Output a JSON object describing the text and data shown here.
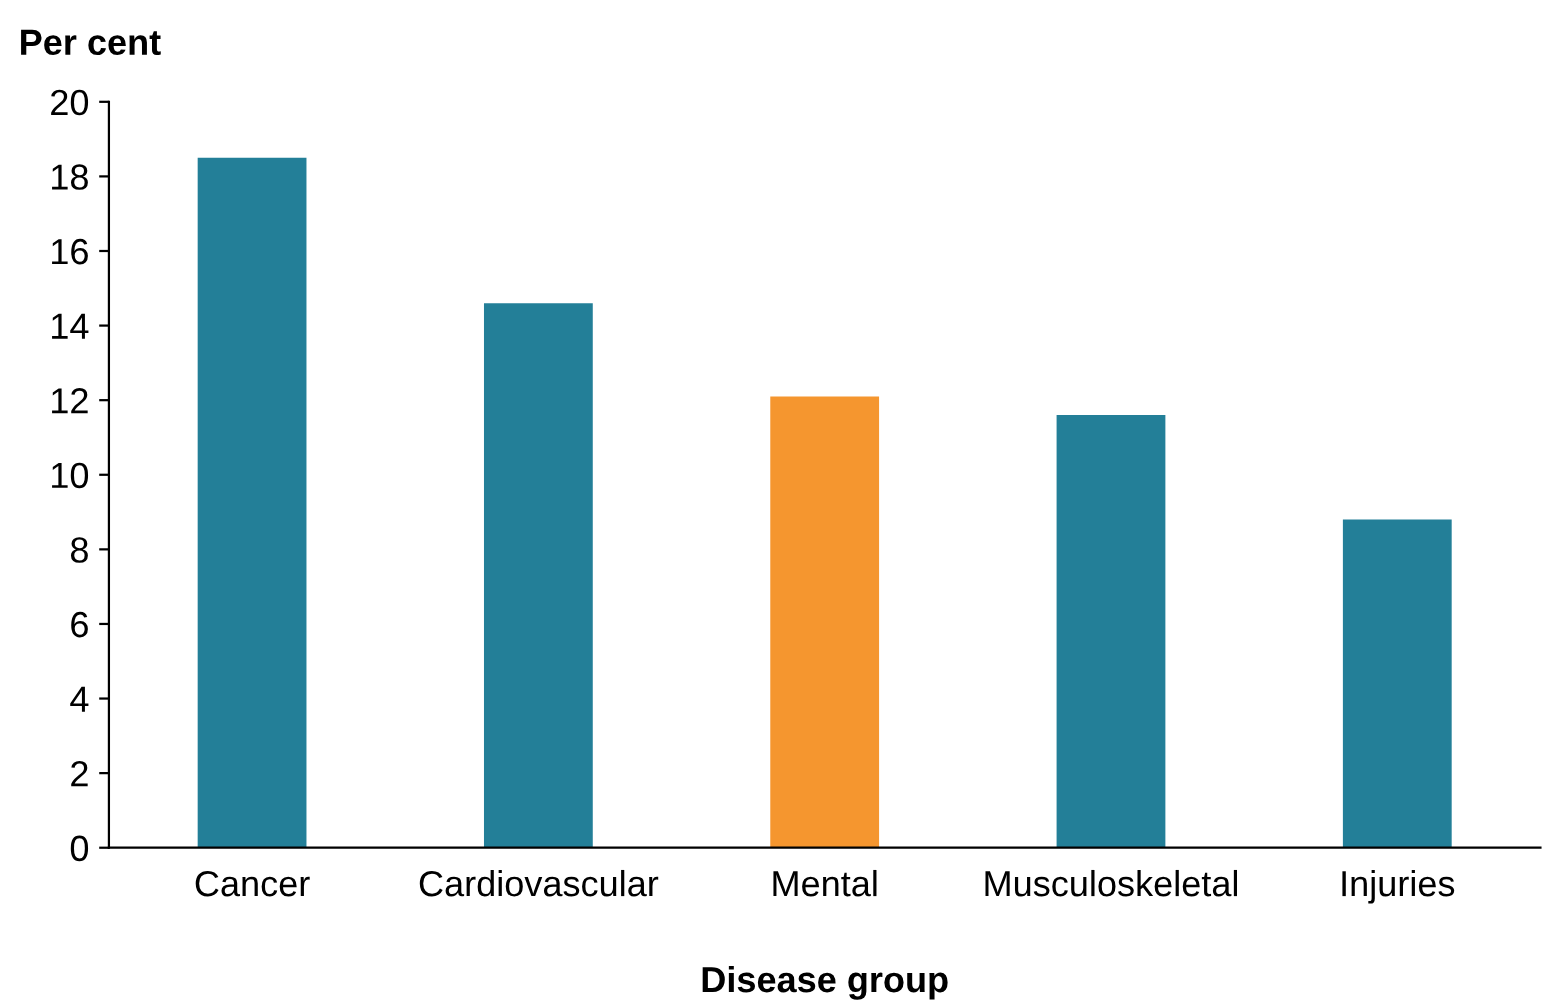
{
  "chart_data": {
    "type": "bar",
    "ylabel": "Per cent",
    "xlabel": "Disease group",
    "categories": [
      "Cancer",
      "Cardiovascular",
      "Mental",
      "Musculoskeletal",
      "Injuries"
    ],
    "values": [
      18.5,
      14.6,
      12.1,
      11.6,
      8.8
    ],
    "colors": [
      "#237f98",
      "#237f98",
      "#f5962f",
      "#237f98",
      "#237f98"
    ],
    "ylim": [
      0,
      20
    ],
    "yticks": [
      0,
      2,
      4,
      6,
      8,
      10,
      12,
      14,
      16,
      18,
      20
    ],
    "grid": false,
    "legend": false
  }
}
